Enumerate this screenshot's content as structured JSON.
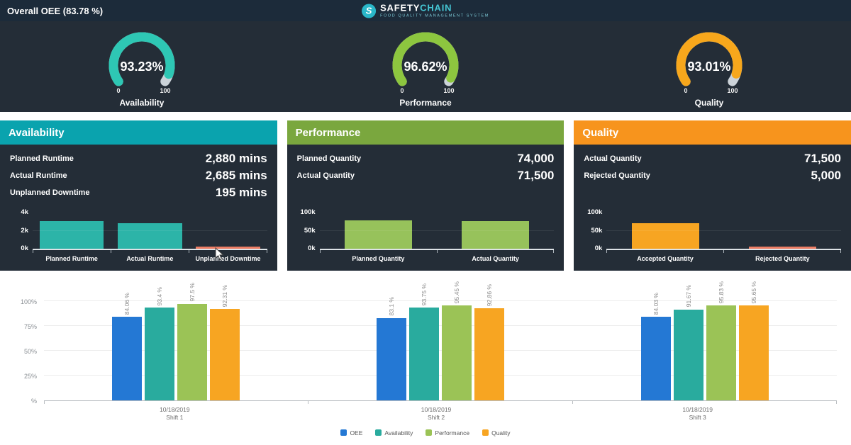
{
  "header": {
    "title": "Overall OEE (83.78 %)",
    "brand": {
      "logo_letter": "S",
      "name_primary": "SAFETY",
      "name_secondary": "CHAIN",
      "tagline": "FOOD QUALITY MANAGEMENT SYSTEM"
    }
  },
  "gauges": [
    {
      "label": "Availability",
      "value": 93.23,
      "display": "93.23%",
      "min_label": "0",
      "max_label": "100",
      "color": "#2ec7b4"
    },
    {
      "label": "Performance",
      "value": 96.62,
      "display": "96.62%",
      "min_label": "0",
      "max_label": "100",
      "color": "#8dc63f"
    },
    {
      "label": "Quality",
      "value": 93.01,
      "display": "93.01%",
      "min_label": "0",
      "max_label": "100",
      "color": "#f7a71c"
    }
  ],
  "panels": [
    {
      "title": "Availability",
      "header_color": "#0aa3ae",
      "metrics": [
        {
          "label": "Planned Runtime",
          "value": "2,880 mins"
        },
        {
          "label": "Actual Runtime",
          "value": "2,685 mins"
        },
        {
          "label": "Unplanned Downtime",
          "value": "195 mins"
        }
      ]
    },
    {
      "title": "Performance",
      "header_color": "#7aa73e",
      "metrics": [
        {
          "label": "Planned Quantity",
          "value": "74,000"
        },
        {
          "label": "Actual Quantity",
          "value": "71,500"
        }
      ]
    },
    {
      "title": "Quality",
      "header_color": "#f7941d",
      "metrics": [
        {
          "label": "Actual Quantity",
          "value": "71,500"
        },
        {
          "label": "Rejected Quantity",
          "value": "5,000"
        }
      ]
    }
  ],
  "chart_data": [
    {
      "type": "bar",
      "panel": "Availability",
      "categories": [
        "Planned Runtime",
        "Actual Runtime",
        "Unplanned Downtime"
      ],
      "values": [
        2880,
        2685,
        195
      ],
      "colors": [
        "#2cb4a8",
        "#2cb4a8",
        "#ed7d64"
      ],
      "ylim": [
        0,
        4000
      ],
      "ytick_labels": [
        "4k",
        "2k",
        "0k"
      ]
    },
    {
      "type": "bar",
      "panel": "Performance",
      "categories": [
        "Planned Quantity",
        "Actual Quantity"
      ],
      "values": [
        74000,
        71500
      ],
      "colors": [
        "#97c25b",
        "#97c25b"
      ],
      "ylim": [
        0,
        100000
      ],
      "ytick_labels": [
        "100k",
        "50k",
        "0k"
      ]
    },
    {
      "type": "bar",
      "panel": "Quality",
      "categories": [
        "Accepted Quantity",
        "Rejected Quantity"
      ],
      "values": [
        66500,
        5000
      ],
      "colors": [
        "#f7a522",
        "#ed7d64"
      ],
      "ylim": [
        0,
        100000
      ],
      "ytick_labels": [
        "100k",
        "50k",
        "0k"
      ]
    },
    {
      "type": "bar",
      "id": "shift-comparison",
      "ylim": [
        0,
        100
      ],
      "ytick_labels": [
        "100%",
        "75%",
        "50%",
        "25%",
        "%"
      ],
      "groups": [
        {
          "date": "10/18/2019",
          "shift": "Shift 1"
        },
        {
          "date": "10/18/2019",
          "shift": "Shift 2"
        },
        {
          "date": "10/18/2019",
          "shift": "Shift 3"
        }
      ],
      "series": [
        {
          "name": "OEE",
          "color": "#2478d4",
          "values": [
            84.06,
            83.1,
            84.03
          ],
          "labels": [
            "84.06 %",
            "83.1 %",
            "84.03 %"
          ]
        },
        {
          "name": "Availability",
          "color": "#29ab9e",
          "values": [
            93.4,
            93.75,
            91.67
          ],
          "labels": [
            "93.4 %",
            "93.75 %",
            "91.67 %"
          ]
        },
        {
          "name": "Performance",
          "color": "#9bc356",
          "values": [
            97.5,
            95.45,
            95.83
          ],
          "labels": [
            "97.5 %",
            "95.45 %",
            "95.83 %"
          ]
        },
        {
          "name": "Quality",
          "color": "#f7a522",
          "values": [
            92.31,
            92.86,
            95.65
          ],
          "labels": [
            "92.31 %",
            "92.86 %",
            "95.65 %"
          ]
        }
      ]
    }
  ]
}
